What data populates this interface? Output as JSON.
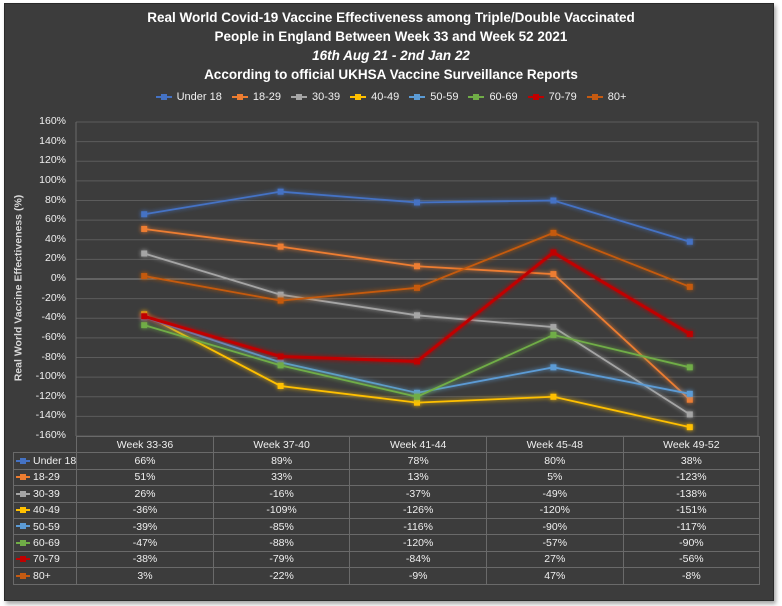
{
  "chart_data": {
    "type": "line",
    "title_lines": [
      "Real World Covid-19 Vaccine Effectiveness among Triple/Double Vaccinated",
      "People in England Between Week 33 and Week 52 2021",
      "16th Aug 21 - 2nd Jan 22",
      "According to official UKHSA Vaccine Surveillance Reports"
    ],
    "ylabel": "Real World Vaccine Effectiveness (%)",
    "xlabel": "",
    "ylim": [
      -160,
      160
    ],
    "ystep": 20,
    "y_tick_labels": [
      "160%",
      "140%",
      "120%",
      "100%",
      "80%",
      "60%",
      "40%",
      "20%",
      "0%",
      "-20%",
      "-40%",
      "-60%",
      "-80%",
      "-100%",
      "-120%",
      "-140%",
      "-160%"
    ],
    "grid": true,
    "legend_position": "top",
    "categories": [
      "Week 33-36",
      "Week 37-40",
      "Week 41-44",
      "Week 45-48",
      "Week 49-52"
    ],
    "series": [
      {
        "name": "Under 18",
        "color": "#4472c4",
        "values": [
          66,
          89,
          78,
          80,
          38
        ],
        "labels": [
          "66%",
          "89%",
          "78%",
          "80%",
          "38%"
        ]
      },
      {
        "name": "18-29",
        "color": "#ed7d31",
        "values": [
          51,
          33,
          13,
          5,
          -123
        ],
        "labels": [
          "51%",
          "33%",
          "13%",
          "5%",
          "-123%"
        ]
      },
      {
        "name": "30-39",
        "color": "#a5a5a5",
        "values": [
          26,
          -16,
          -37,
          -49,
          -138
        ],
        "labels": [
          "26%",
          "-16%",
          "-37%",
          "-49%",
          "-138%"
        ]
      },
      {
        "name": "40-49",
        "color": "#ffc000",
        "values": [
          -36,
          -109,
          -126,
          -120,
          -151
        ],
        "labels": [
          "-36%",
          "-109%",
          "-126%",
          "-120%",
          "-151%"
        ]
      },
      {
        "name": "50-59",
        "color": "#5b9bd5",
        "values": [
          -39,
          -85,
          -116,
          -90,
          -117
        ],
        "labels": [
          "-39%",
          "-85%",
          "-116%",
          "-90%",
          "-117%"
        ]
      },
      {
        "name": "60-69",
        "color": "#70ad47",
        "values": [
          -47,
          -88,
          -120,
          -57,
          -90
        ],
        "labels": [
          "-47%",
          "-88%",
          "-120%",
          "-57%",
          "-90%"
        ]
      },
      {
        "name": "70-79",
        "color": "#c00000",
        "values": [
          -38,
          -79,
          -84,
          27,
          -56
        ],
        "labels": [
          "-38%",
          "-79%",
          "-84%",
          "27%",
          "-56%"
        ]
      },
      {
        "name": "80+",
        "color": "#c55a11",
        "values": [
          3,
          -22,
          -9,
          47,
          -8
        ],
        "labels": [
          "3%",
          "-22%",
          "-9%",
          "47%",
          "-8%"
        ]
      }
    ]
  }
}
